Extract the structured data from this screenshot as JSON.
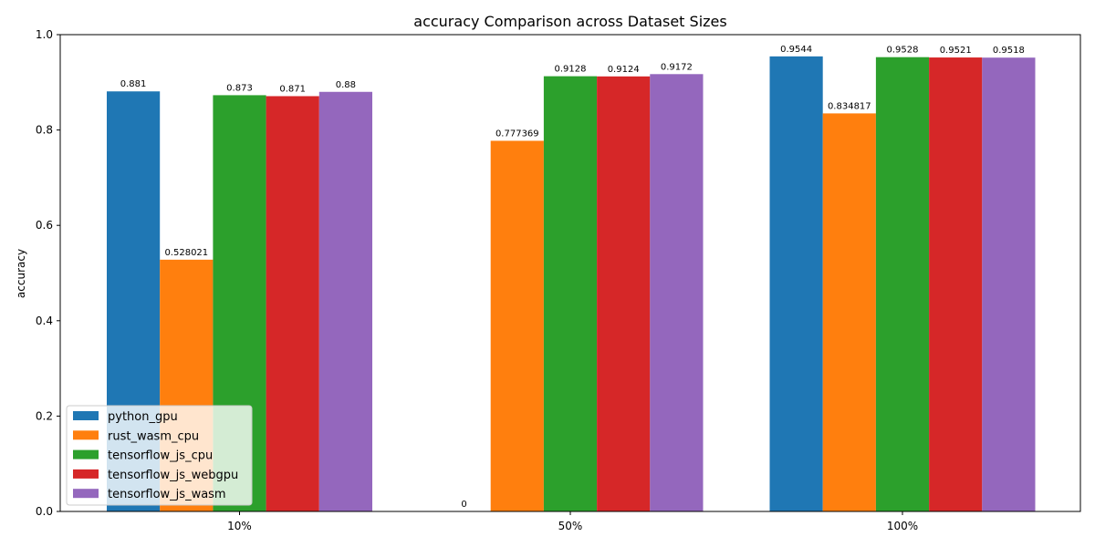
{
  "chart_data": {
    "type": "bar",
    "title": "accuracy Comparison across Dataset Sizes",
    "xlabel": "",
    "ylabel": "accuracy",
    "ylim": [
      0,
      1.0
    ],
    "yticks": [
      "0.0",
      "0.2",
      "0.4",
      "0.6",
      "0.8",
      "1.0"
    ],
    "categories": [
      "10%",
      "50%",
      "100%"
    ],
    "legend_position": "lower-left",
    "grid": false,
    "series": [
      {
        "name": "python_gpu",
        "color": "#1f77b4",
        "values": [
          0.881,
          0,
          0.9544
        ],
        "labels": [
          "0.881",
          "0",
          "0.9544"
        ]
      },
      {
        "name": "rust_wasm_cpu",
        "color": "#ff7f0e",
        "values": [
          0.528021,
          0.777369,
          0.834817
        ],
        "labels": [
          "0.528021",
          "0.777369",
          "0.834817"
        ]
      },
      {
        "name": "tensorflow_js_cpu",
        "color": "#2ca02c",
        "values": [
          0.873,
          0.9128,
          0.9528
        ],
        "labels": [
          "0.873",
          "0.9128",
          "0.9528"
        ]
      },
      {
        "name": "tensorflow_js_webgpu",
        "color": "#d62728",
        "values": [
          0.871,
          0.9124,
          0.9521
        ],
        "labels": [
          "0.871",
          "0.9124",
          "0.9521"
        ]
      },
      {
        "name": "tensorflow_js_wasm",
        "color": "#9467bd",
        "values": [
          0.88,
          0.9172,
          0.9518
        ],
        "labels": [
          "0.88",
          "0.9172",
          "0.9518"
        ]
      }
    ]
  }
}
